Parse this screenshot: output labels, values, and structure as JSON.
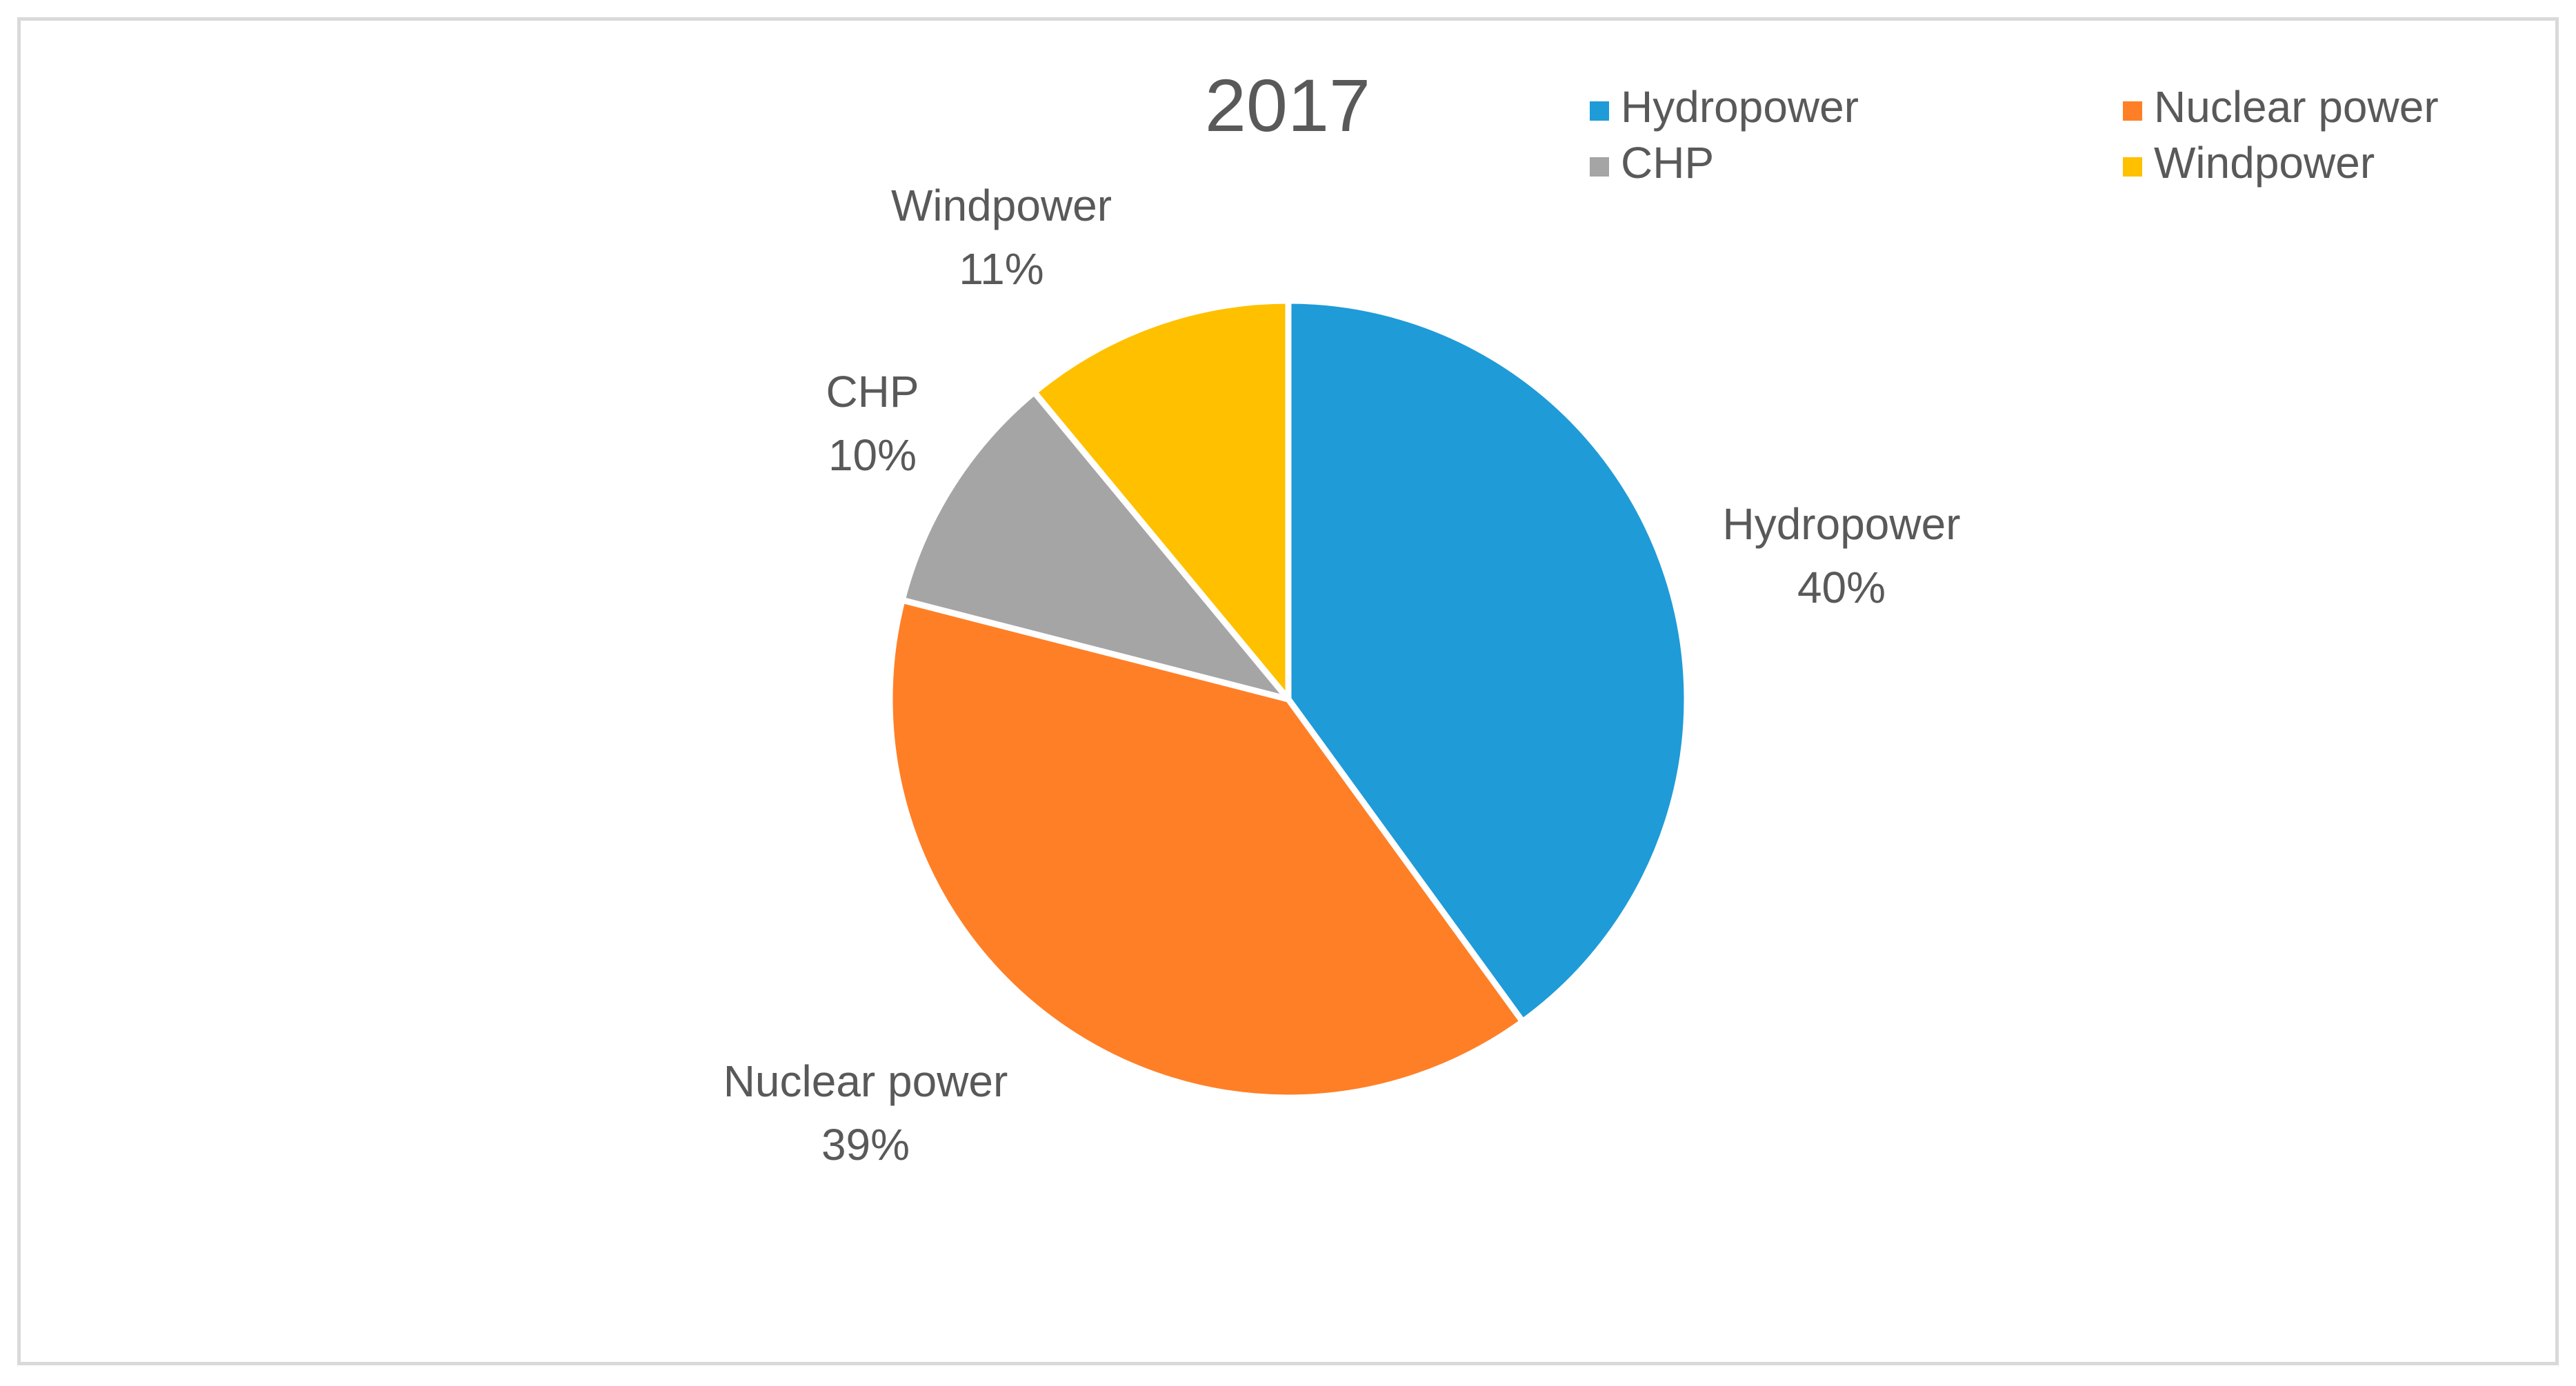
{
  "chart_data": {
    "type": "pie",
    "title": "2017",
    "categories": [
      "Hydropower",
      "Nuclear power",
      "CHP",
      "Windpower"
    ],
    "values": [
      40,
      39,
      10,
      11
    ],
    "percent_labels": [
      "40%",
      "39%",
      "10%",
      "11%"
    ],
    "colors": [
      "#1f9bd8",
      "#ff7f27",
      "#a5a5a5",
      "#ffc000"
    ],
    "legend": {
      "placement": "top-right",
      "items": [
        "Hydropower",
        "Nuclear power",
        "CHP",
        "Windpower"
      ]
    },
    "data_labels": {
      "show_category": true,
      "show_percent": true
    }
  }
}
